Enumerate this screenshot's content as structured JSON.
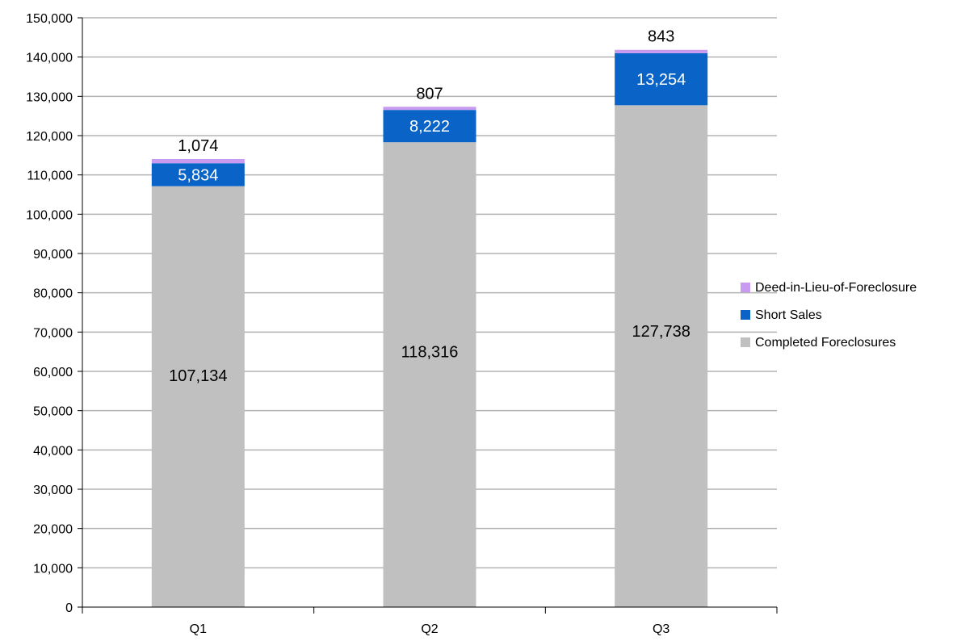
{
  "chart_data": {
    "type": "bar",
    "stacked": true,
    "categories": [
      "Q1",
      "Q2",
      "Q3"
    ],
    "series": [
      {
        "name": "Completed Foreclosures",
        "values": [
          107134,
          118316,
          127738
        ],
        "color": "#C0C0C0",
        "labels": [
          "107,134",
          "118,316",
          "127,738"
        ],
        "label_color": "#000000"
      },
      {
        "name": "Short Sales",
        "values": [
          5834,
          8222,
          13254
        ],
        "color": "#0A64C8",
        "labels": [
          "5,834",
          "8,222",
          "13,254"
        ],
        "label_color": "#FFFFFF"
      },
      {
        "name": "Deed-in-Lieu-of-Foreclosure",
        "values": [
          1074,
          807,
          843
        ],
        "color": "#C89BF0",
        "labels": [
          "1,074",
          "807",
          "843"
        ],
        "label_color": "#000000"
      }
    ],
    "ylim": [
      0,
      150000
    ],
    "ytick_step": 10000,
    "ytick_labels": [
      "0",
      "10,000",
      "20,000",
      "30,000",
      "40,000",
      "50,000",
      "60,000",
      "70,000",
      "80,000",
      "90,000",
      "100,000",
      "110,000",
      "120,000",
      "130,000",
      "140,000",
      "150,000"
    ],
    "xlabel": "",
    "ylabel": "",
    "title": "",
    "grid": true,
    "legend_position": "right",
    "legend_order": [
      "Deed-in-Lieu-of-Foreclosure",
      "Short Sales",
      "Completed Foreclosures"
    ]
  }
}
